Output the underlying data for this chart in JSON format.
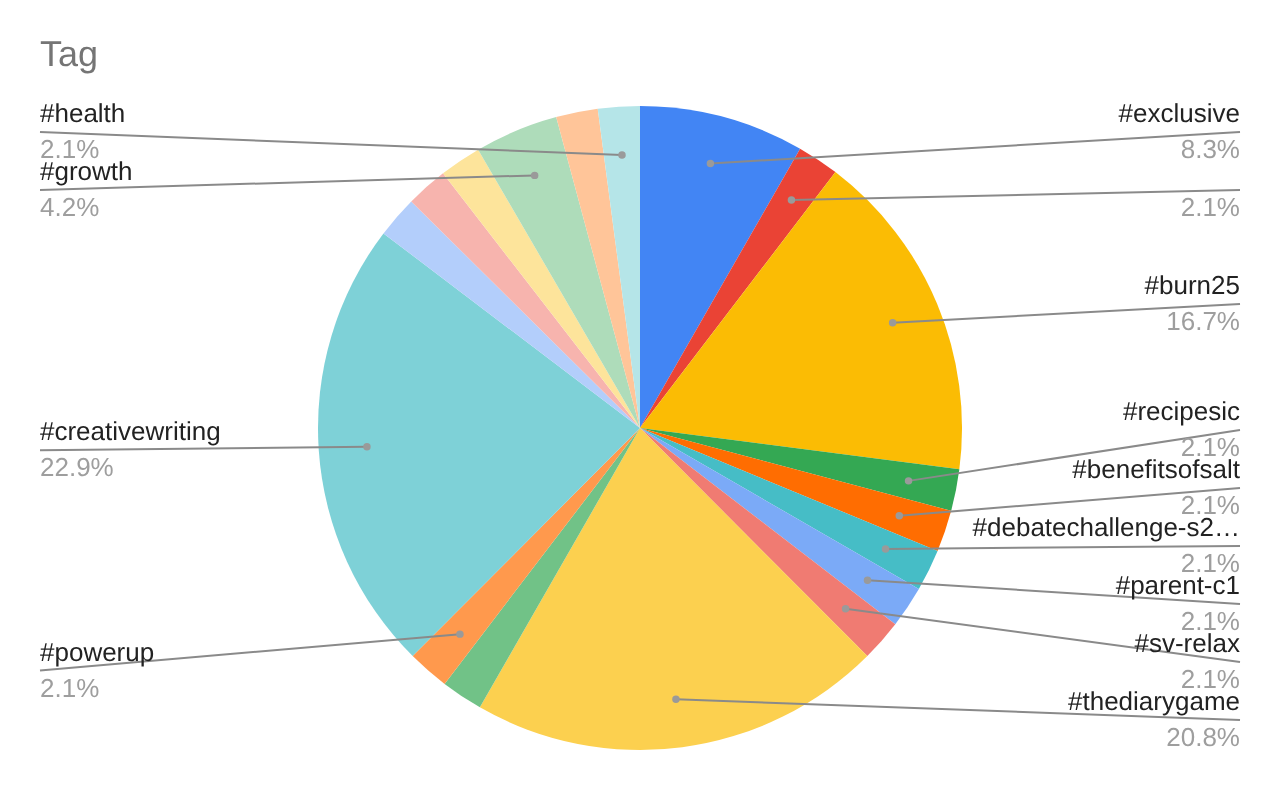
{
  "chart_data": {
    "type": "pie",
    "title": "Tag",
    "categories": [
      "#exclusive",
      null,
      "#burn25",
      "#recipesic",
      "#benefitsofsalt",
      "#debatechallenge-s2…",
      "#parent-c1",
      "#sv-relax",
      "#thediarygame",
      null,
      "#powerup",
      "#creativewriting",
      null,
      null,
      null,
      "#growth",
      null,
      "#health"
    ],
    "values": [
      8.3,
      2.1,
      16.7,
      2.1,
      2.1,
      2.1,
      2.1,
      2.1,
      20.8,
      2.1,
      2.1,
      22.9,
      2.1,
      2.1,
      2.1,
      4.2,
      2.1,
      2.1
    ],
    "value_labels": [
      "8.3%",
      "2.1%",
      "16.7%",
      "2.1%",
      "2.1%",
      "2.1%",
      "2.1%",
      "2.1%",
      "20.8%",
      null,
      "2.1%",
      "22.9%",
      null,
      null,
      null,
      "4.2%",
      null,
      "2.1%"
    ],
    "colors": [
      "#4285f4",
      "#ea4335",
      "#fbbc04",
      "#34a853",
      "#ff6d01",
      "#46bdc6",
      "#7baaf7",
      "#f07b72",
      "#fcd04f",
      "#71c287",
      "#ff994d",
      "#7ed1d7",
      "#b3cefb",
      "#f7b4ae",
      "#fde49b",
      "#aedcba",
      "#ffc599",
      "#b5e5e8"
    ]
  }
}
